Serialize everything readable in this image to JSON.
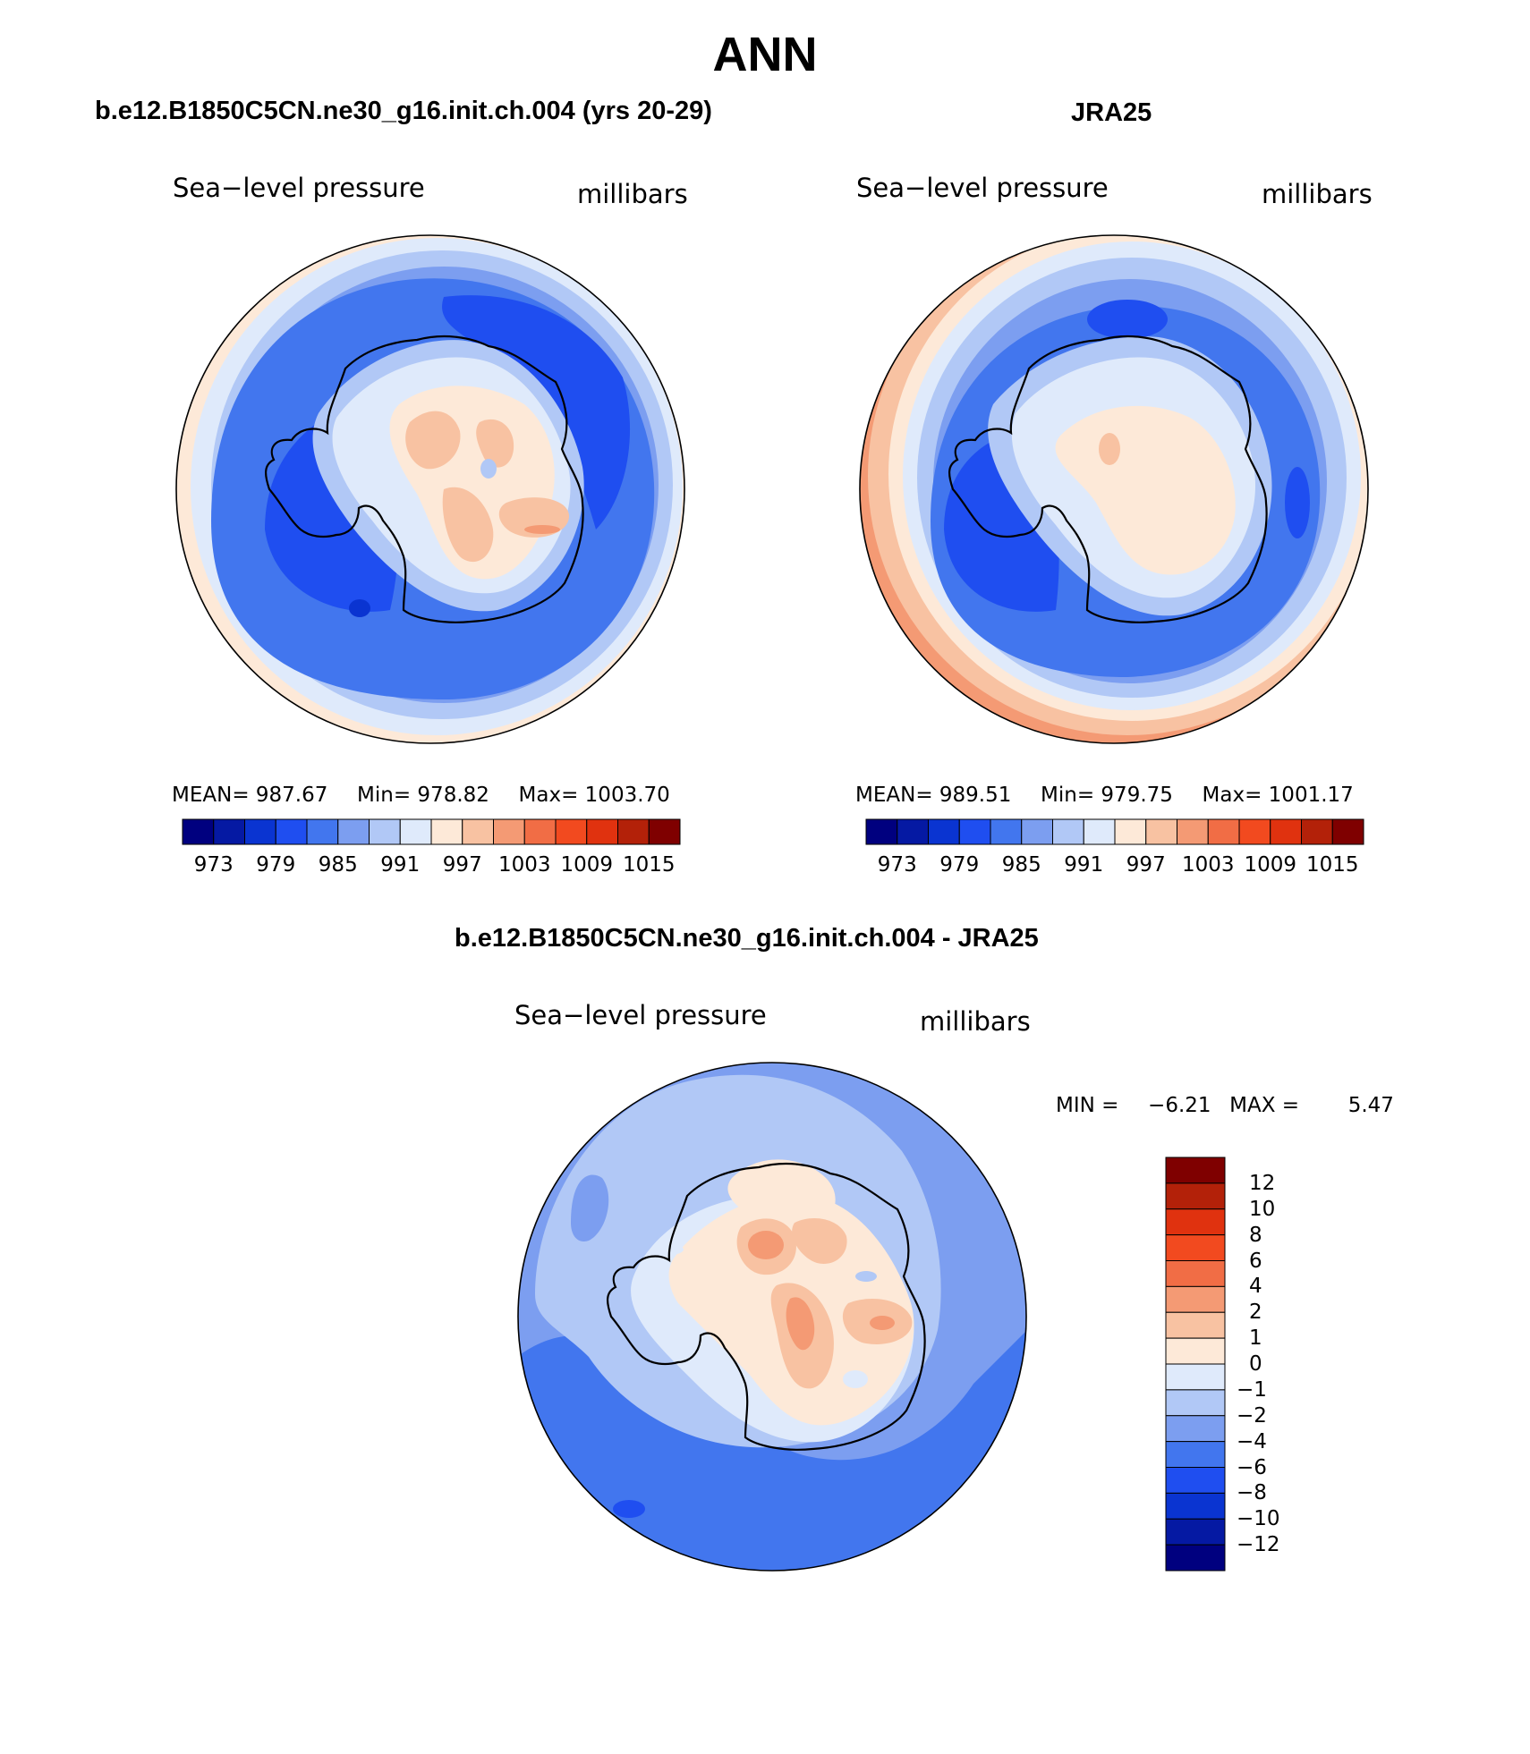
{
  "page": {
    "title": "ANN"
  },
  "panels": {
    "model": {
      "title": "b.e12.B1850C5CN.ne30_g16.init.ch.004 (yrs 20-29)",
      "variable": "Sea−level pressure",
      "units": "millibars",
      "mean_label": "MEAN=",
      "mean": "987.67",
      "min_label": "Min=",
      "min": "978.82",
      "max_label": "Max=",
      "max": "1003.70"
    },
    "obs": {
      "title": "JRA25",
      "variable": "Sea−level pressure",
      "units": "millibars",
      "mean_label": "MEAN=",
      "mean": "989.51",
      "min_label": "Min=",
      "min": "979.75",
      "max_label": "Max=",
      "max": "1001.17"
    },
    "diff": {
      "title": "b.e12.B1850C5CN.ne30_g16.init.ch.004 - JRA25",
      "variable": "Sea−level pressure",
      "units": "millibars",
      "min_label": "MIN =",
      "min": "−6.21",
      "max_label": "MAX =",
      "max": "5.47"
    }
  },
  "colors": {
    "abs_colorbar": [
      "#00007f",
      "#0519a3",
      "#0a34d1",
      "#1f4ef0",
      "#4276ee",
      "#7c9ef0",
      "#b1c8f6",
      "#dfeafb",
      "#fde9d8",
      "#f8c2a2",
      "#f49a74",
      "#f16d45",
      "#f24a1f",
      "#e0320f",
      "#b32109",
      "#7f0000"
    ],
    "diff_colorbar": [
      "#00007f",
      "#0519a3",
      "#0a34d1",
      "#1f4ef0",
      "#4276ee",
      "#7c9ef0",
      "#b1c8f6",
      "#dfeafb",
      "#fde9d8",
      "#f8c2a2",
      "#f49a74",
      "#f16d45",
      "#f24a1f",
      "#e0320f",
      "#b32109",
      "#7f0000"
    ]
  },
  "chart_data": [
    {
      "type": "heatmap",
      "projection": "south polar stereographic",
      "title": "b.e12.B1850C5CN.ne30_g16.init.ch.004 (yrs 20-29)",
      "variable": "Sea-level pressure",
      "units": "millibars",
      "mean": 987.67,
      "min": 978.82,
      "max": 1003.7,
      "contour_levels": [
        973,
        976,
        979,
        982,
        985,
        988,
        991,
        994,
        997,
        1000,
        1003,
        1006,
        1009,
        1012,
        1015
      ],
      "colorbar_tick_labels": [
        "973",
        "979",
        "985",
        "991",
        "997",
        "1003",
        "1009",
        "1015"
      ]
    },
    {
      "type": "heatmap",
      "projection": "south polar stereographic",
      "title": "JRA25",
      "variable": "Sea-level pressure",
      "units": "millibars",
      "mean": 989.51,
      "min": 979.75,
      "max": 1001.17,
      "contour_levels": [
        973,
        976,
        979,
        982,
        985,
        988,
        991,
        994,
        997,
        1000,
        1003,
        1006,
        1009,
        1012,
        1015
      ],
      "colorbar_tick_labels": [
        "973",
        "979",
        "985",
        "991",
        "997",
        "1003",
        "1009",
        "1015"
      ]
    },
    {
      "type": "heatmap",
      "projection": "south polar stereographic",
      "title": "b.e12.B1850C5CN.ne30_g16.init.ch.004 - JRA25",
      "variable": "Sea-level pressure",
      "units": "millibars",
      "min": -6.21,
      "max": 5.47,
      "contour_levels": [
        -12,
        -10,
        -8,
        -6,
        -4,
        -2,
        -1,
        0,
        1,
        2,
        4,
        6,
        8,
        10,
        12
      ],
      "colorbar_tick_labels": [
        "12",
        "10",
        "8",
        "6",
        "4",
        "2",
        "1",
        "0",
        "−1",
        "−2",
        "−4",
        "−6",
        "−8",
        "−10",
        "−12"
      ]
    }
  ]
}
